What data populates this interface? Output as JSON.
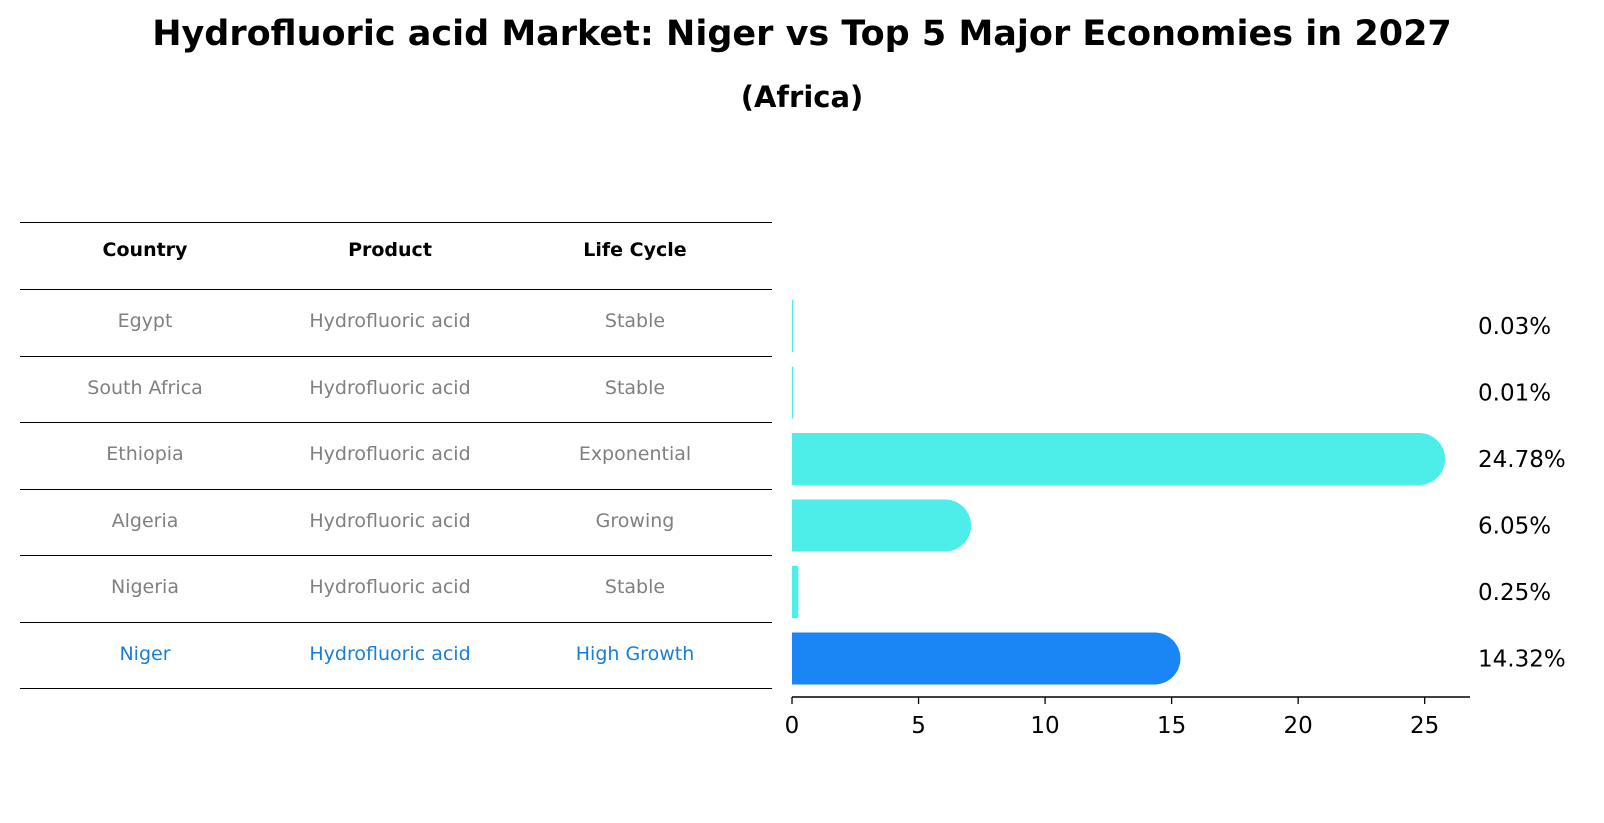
{
  "chart_data": {
    "type": "bar",
    "orientation": "horizontal",
    "title": "Hydrofluoric acid Market: Niger vs Top 5 Major Economies in 2027",
    "subtitle": "(Africa)",
    "columns": [
      "Country",
      "Product",
      "Life Cycle"
    ],
    "rows": [
      {
        "country": "Egypt",
        "product": "Hydrofluoric acid",
        "life_cycle": "Stable",
        "value": 0.03,
        "label": "0.03%",
        "highlight": false
      },
      {
        "country": "South Africa",
        "product": "Hydrofluoric acid",
        "life_cycle": "Stable",
        "value": 0.01,
        "label": "0.01%",
        "highlight": false
      },
      {
        "country": "Ethiopia",
        "product": "Hydrofluoric acid",
        "life_cycle": "Exponential",
        "value": 24.78,
        "label": "24.78%",
        "highlight": false
      },
      {
        "country": "Algeria",
        "product": "Hydrofluoric acid",
        "life_cycle": "Growing",
        "value": 6.05,
        "label": "6.05%",
        "highlight": false
      },
      {
        "country": "Nigeria",
        "product": "Hydrofluoric acid",
        "life_cycle": "Stable",
        "value": 0.25,
        "label": "0.25%",
        "highlight": false
      },
      {
        "country": "Niger",
        "product": "Hydrofluoric acid",
        "life_cycle": "High Growth",
        "value": 14.32,
        "label": "14.32%",
        "highlight": true
      }
    ],
    "xlim": [
      0,
      26
    ],
    "xticks": [
      "0",
      "5",
      "10",
      "15",
      "20",
      "25"
    ],
    "colors": {
      "bar": "#4deeea",
      "highlight_bar": "#1a85f5",
      "highlight_text": "#1a7fd4",
      "muted_text": "#808080"
    }
  }
}
